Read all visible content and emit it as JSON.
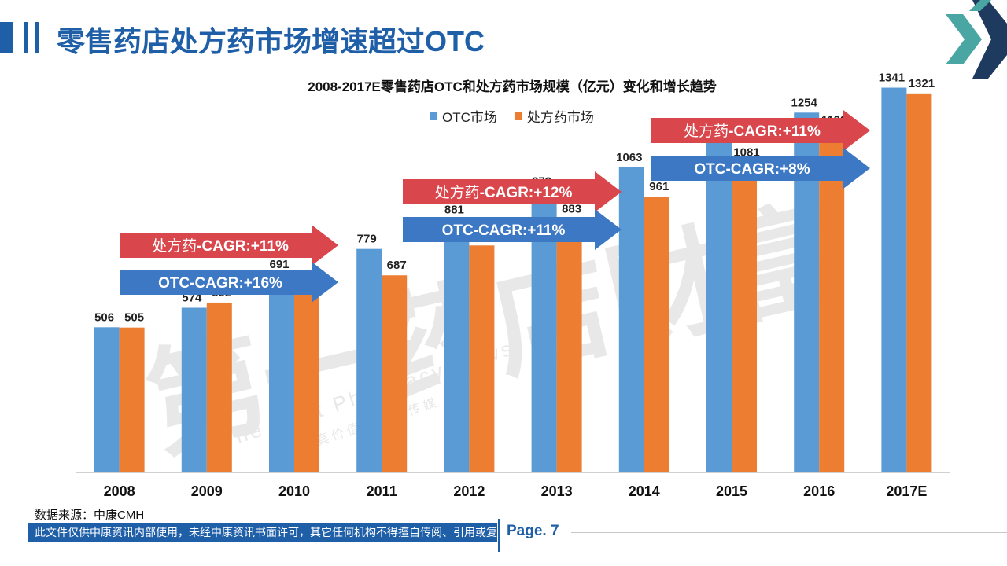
{
  "page": {
    "title": "零售药店处方药市场增速超过OTC",
    "source": "数据来源：中康CMH",
    "disclaimer": "此文件仅供中康资讯内部使用，未经中康资讯书面许可，其它任何机构不得擅自传阅、引用或复制",
    "page_label": "Page. 7",
    "watermark_cn": "第一药店财富",
    "watermark_en": "The First Pharmacy News",
    "watermark_sub": "慧 真 价 值 的 药 店 传 媒"
  },
  "colors": {
    "otc": "#5b9bd5",
    "rx": "#ed7d31",
    "brand": "#1f5fa8",
    "arrow_rx": "#d9464c",
    "arrow_otc": "#3d78c4",
    "logo_teal": "#4aa6a2",
    "logo_navy": "#1f3a5f"
  },
  "chart_data": {
    "type": "bar",
    "title": "2008-2017E零售药店OTC和处方药市场规模（亿元）变化和增长趋势",
    "categories": [
      "2008",
      "2009",
      "2010",
      "2011",
      "2012",
      "2013",
      "2014",
      "2015",
      "2016",
      "2017E"
    ],
    "series": [
      {
        "name": "OTC市场",
        "values": [
          506,
          574,
          691,
          779,
          881,
          979,
          1063,
          1179,
          1254,
          1341
        ]
      },
      {
        "name": "处方药市场",
        "values": [
          505,
          592,
          652,
          687,
          791,
          883,
          961,
          1081,
          1193,
          1321
        ]
      }
    ],
    "ylim": [
      0,
      1400
    ],
    "annotations": [
      {
        "group": 1,
        "series": "rx",
        "text_cn": "处方药",
        "text_en": "-CAGR:+11%"
      },
      {
        "group": 1,
        "series": "otc",
        "text_cn": "",
        "text_en": "OTC-CAGR:+16%"
      },
      {
        "group": 2,
        "series": "rx",
        "text_cn": "处方药",
        "text_en": "-CAGR:+12%"
      },
      {
        "group": 2,
        "series": "otc",
        "text_cn": "",
        "text_en": "OTC-CAGR:+11%"
      },
      {
        "group": 3,
        "series": "rx",
        "text_cn": "处方药",
        "text_en": "-CAGR:+11%"
      },
      {
        "group": 3,
        "series": "otc",
        "text_cn": "",
        "text_en": "OTC-CAGR:+8%"
      }
    ]
  }
}
